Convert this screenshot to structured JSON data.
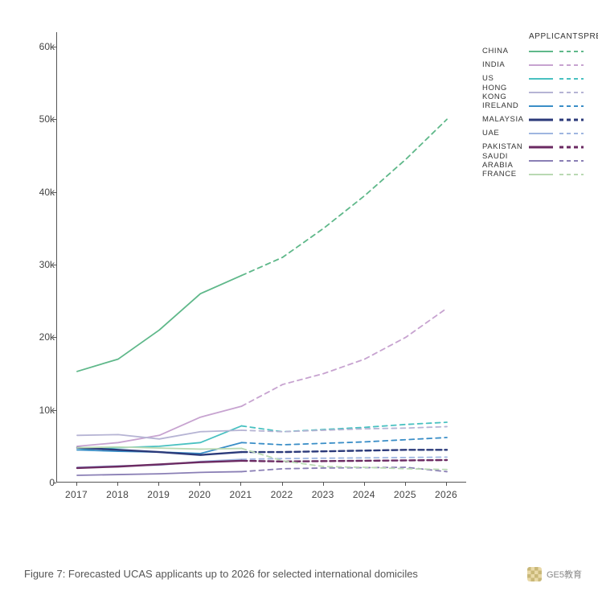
{
  "chart": {
    "type": "line",
    "background_color": "#ffffff",
    "caption": "Figure 7: Forecasted UCAS applicants up to 2026 for selected international domiciles",
    "caption_fontsize": 13,
    "caption_color": "#555555",
    "x": {
      "categories": [
        "2017",
        "2018",
        "2019",
        "2020",
        "2021",
        "2022",
        "2023",
        "2024",
        "2025",
        "2026"
      ],
      "label_fontsize": 12
    },
    "y": {
      "min": 0,
      "max": 62000,
      "ticks": [
        0,
        10000,
        20000,
        30000,
        40000,
        50000,
        60000
      ],
      "tick_labels": [
        "0",
        "10k",
        "20k",
        "30k",
        "40k",
        "50k",
        "60k"
      ],
      "label_fontsize": 12
    },
    "axis_color": "#555555",
    "line_width_solid": 1.8,
    "line_width_dash": 1.8,
    "dash_pattern": "6,5",
    "dash_pattern_bold": "7,4",
    "legend": {
      "header_applicants": "APPLICANTS",
      "header_predicted": "PREDICTED",
      "label_fontsize": 9.5
    },
    "series": [
      {
        "name": "CHINA",
        "color": "#5fb88a",
        "actual": [
          15300,
          17000,
          21000,
          26000,
          28500
        ],
        "predicted": [
          28500,
          31000,
          35000,
          39500,
          44500,
          50000
        ]
      },
      {
        "name": "INDIA",
        "color": "#c7a3d0",
        "actual": [
          5000,
          5500,
          6500,
          9000,
          10500
        ],
        "predicted": [
          10500,
          13500,
          15000,
          17000,
          20000,
          24000
        ]
      },
      {
        "name": "US",
        "color": "#49c1c1",
        "actual": [
          4500,
          4800,
          5000,
          5500,
          7800
        ],
        "predicted": [
          7800,
          7000,
          7300,
          7600,
          8000,
          8300
        ]
      },
      {
        "name": "HONG KONG",
        "color": "#b6b4d4",
        "actual": [
          6500,
          6600,
          6000,
          7000,
          7200
        ],
        "predicted": [
          7200,
          7000,
          7200,
          7400,
          7500,
          7700
        ]
      },
      {
        "name": "IRELAND",
        "color": "#3a8ec7",
        "actual": [
          4500,
          4300,
          4200,
          4000,
          5500
        ],
        "predicted": [
          5500,
          5200,
          5400,
          5600,
          5900,
          6200
        ]
      },
      {
        "name": "MALAYSIA",
        "color": "#2b3a7a",
        "actual": [
          4800,
          4500,
          4200,
          3800,
          4200
        ],
        "predicted": [
          4200,
          4200,
          4300,
          4400,
          4500,
          4500
        ]
      },
      {
        "name": "UAE",
        "color": "#9fb6e0",
        "actual": [
          2100,
          2300,
          2400,
          2900,
          3200
        ],
        "predicted": [
          3200,
          3300,
          3350,
          3400,
          3450,
          3500
        ]
      },
      {
        "name": "PAKISTAN",
        "color": "#6b2a62",
        "actual": [
          2000,
          2200,
          2500,
          2800,
          3000
        ],
        "predicted": [
          3000,
          2900,
          2950,
          3000,
          3050,
          3100
        ]
      },
      {
        "name": "SAUDI ARABIA",
        "color": "#8a7fb5",
        "actual": [
          1000,
          1100,
          1200,
          1400,
          1500
        ],
        "predicted": [
          1500,
          1900,
          2000,
          2050,
          2100,
          1500
        ]
      },
      {
        "name": "FRANCE",
        "color": "#b9d9b3",
        "actual": [
          4800,
          4900,
          4750,
          4600,
          4700
        ],
        "predicted": [
          4700,
          3000,
          2200,
          2100,
          1900,
          1800
        ]
      }
    ]
  },
  "footer": {
    "source_label": "GE5教育"
  }
}
